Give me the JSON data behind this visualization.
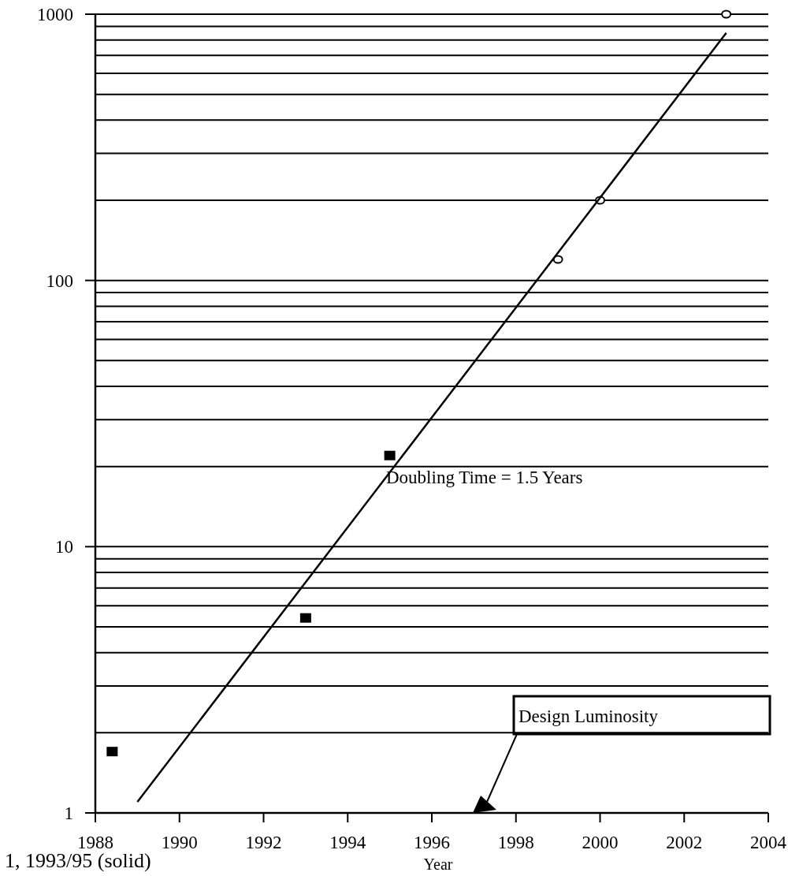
{
  "chart_data": {
    "type": "scatter",
    "xlabel": "Year",
    "log": "y",
    "grid": "y",
    "xlim": [
      1988,
      2004
    ],
    "xticks": [
      1988,
      1990,
      1992,
      1994,
      1996,
      1998,
      2000,
      2002,
      2004
    ],
    "ylim": [
      1,
      1000
    ],
    "yticks": [
      1,
      {
        "value": 2,
        "label": null
      },
      {
        "value": 3,
        "label": null
      },
      {
        "value": 4,
        "label": null
      },
      {
        "value": 5,
        "label": null
      },
      {
        "value": 6,
        "label": null
      },
      {
        "value": 7,
        "label": null
      },
      {
        "value": 8,
        "label": null
      },
      {
        "value": 9,
        "label": null
      },
      10,
      {
        "value": 20,
        "label": null
      },
      {
        "value": 30,
        "label": null
      },
      {
        "value": 40,
        "label": null
      },
      {
        "value": 50,
        "label": null
      },
      {
        "value": 60,
        "label": null
      },
      {
        "value": 70,
        "label": null
      },
      {
        "value": 80,
        "label": null
      },
      {
        "value": 90,
        "label": null
      },
      100,
      {
        "value": 200,
        "label": null
      },
      {
        "value": 300,
        "label": null
      },
      {
        "value": 400,
        "label": null
      },
      {
        "value": 500,
        "label": null
      },
      {
        "value": 600,
        "label": null
      },
      {
        "value": 700,
        "label": null
      },
      {
        "value": 800,
        "label": null
      },
      {
        "value": 900,
        "label": null
      },
      1000
    ],
    "series": [
      {
        "marker": "square",
        "color": "#000000",
        "x": [
          1988.4,
          1993,
          1995
        ],
        "values": [
          1.7,
          5.4,
          22
        ]
      },
      {
        "marker": "circle",
        "color": "#000000",
        "x": [
          1999,
          2000,
          2003
        ],
        "values": [
          120,
          200,
          1000
        ]
      },
      {
        "type": "line",
        "marker": "none",
        "line_style": "solid",
        "color": "#000000",
        "x": [
          1989,
          2003
        ],
        "values": [
          1.1,
          850
        ]
      }
    ],
    "annotations": [
      "Doubling Time = 1.5 Years",
      "Design Luminosity",
      "1, 1993/95 (solid)"
    ]
  }
}
